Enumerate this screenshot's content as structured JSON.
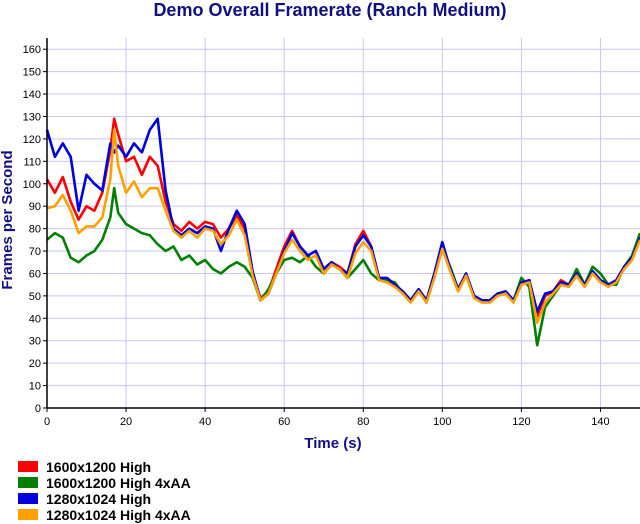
{
  "chart_data": {
    "type": "line",
    "title": "Demo Overall Framerate (Ranch Medium)",
    "xlabel": "Time (s)",
    "ylabel": "Frames per Second",
    "xlim": [
      0,
      150
    ],
    "ylim": [
      0,
      165
    ],
    "x_ticks": [
      "0",
      "20",
      "40",
      "60",
      "80",
      "100",
      "120",
      "140"
    ],
    "y_ticks": [
      "0",
      "10",
      "20",
      "30",
      "40",
      "50",
      "60",
      "70",
      "80",
      "90",
      "100",
      "110",
      "120",
      "130",
      "140",
      "150",
      "160"
    ],
    "grid": true,
    "legend_position": "bottom-left",
    "title_color": "#101080",
    "label_color": "#101080",
    "grid_color": "#c8c8f0",
    "series": [
      {
        "name": "1600x1200 High",
        "color": "#ff0000",
        "x": [
          0,
          2,
          4,
          6,
          8,
          10,
          12,
          14,
          16,
          17,
          18,
          20,
          22,
          24,
          26,
          28,
          30,
          32,
          34,
          36,
          38,
          40,
          42,
          44,
          46,
          48,
          50,
          52,
          54,
          56,
          58,
          60,
          62,
          64,
          66,
          68,
          70,
          72,
          74,
          76,
          78,
          80,
          82,
          84,
          86,
          88,
          90,
          92,
          94,
          96,
          98,
          100,
          102,
          104,
          106,
          108,
          110,
          112,
          114,
          116,
          118,
          120,
          122,
          124,
          126,
          128,
          130,
          132,
          134,
          136,
          138,
          140,
          142,
          144,
          146,
          148,
          150
        ],
        "values": [
          102,
          96,
          103,
          92,
          84,
          90,
          88,
          96,
          115,
          129,
          122,
          110,
          112,
          104,
          112,
          108,
          92,
          82,
          79,
          83,
          80,
          83,
          82,
          76,
          80,
          86,
          80,
          60,
          49,
          52,
          62,
          72,
          79,
          72,
          68,
          70,
          62,
          65,
          63,
          60,
          73,
          79,
          72,
          58,
          57,
          54,
          52,
          48,
          53,
          48,
          60,
          73,
          62,
          53,
          60,
          50,
          48,
          48,
          51,
          52,
          48,
          55,
          57,
          41,
          50,
          52,
          57,
          55,
          60,
          55,
          61,
          57,
          55,
          57,
          63,
          67,
          77
        ]
      },
      {
        "name": "1600x1200 High 4xAA",
        "color": "#008000",
        "x": [
          0,
          2,
          4,
          6,
          8,
          10,
          12,
          14,
          16,
          17,
          18,
          20,
          22,
          24,
          26,
          28,
          30,
          32,
          34,
          36,
          38,
          40,
          42,
          44,
          46,
          48,
          50,
          52,
          54,
          56,
          58,
          60,
          62,
          64,
          66,
          68,
          70,
          72,
          74,
          76,
          78,
          80,
          82,
          84,
          86,
          88,
          90,
          92,
          94,
          96,
          98,
          100,
          102,
          104,
          106,
          108,
          110,
          112,
          114,
          116,
          118,
          120,
          122,
          124,
          126,
          128,
          130,
          132,
          134,
          136,
          138,
          140,
          142,
          144,
          146,
          148,
          150
        ],
        "values": [
          75,
          78,
          76,
          67,
          65,
          68,
          70,
          75,
          85,
          98,
          87,
          82,
          80,
          78,
          77,
          73,
          70,
          72,
          66,
          68,
          64,
          66,
          62,
          60,
          63,
          65,
          63,
          58,
          48,
          53,
          60,
          66,
          67,
          65,
          68,
          63,
          60,
          64,
          62,
          58,
          62,
          66,
          60,
          57,
          57,
          56,
          51,
          48,
          53,
          47,
          59,
          71,
          63,
          53,
          59,
          50,
          48,
          48,
          51,
          51,
          48,
          58,
          54,
          28,
          45,
          50,
          55,
          55,
          62,
          55,
          63,
          60,
          55,
          55,
          63,
          68,
          78
        ]
      },
      {
        "name": "1280x1024 High",
        "color": "#0000dd",
        "x": [
          0,
          2,
          4,
          6,
          8,
          10,
          12,
          14,
          16,
          17,
          18,
          20,
          22,
          24,
          26,
          28,
          30,
          32,
          34,
          36,
          38,
          40,
          42,
          44,
          46,
          48,
          50,
          52,
          54,
          56,
          58,
          60,
          62,
          64,
          66,
          68,
          70,
          72,
          74,
          76,
          78,
          80,
          82,
          84,
          86,
          88,
          90,
          92,
          94,
          96,
          98,
          100,
          102,
          104,
          106,
          108,
          110,
          112,
          114,
          116,
          118,
          120,
          122,
          124,
          126,
          128,
          130,
          132,
          134,
          136,
          138,
          140,
          142,
          144,
          146,
          148,
          150
        ],
        "values": [
          124,
          112,
          118,
          112,
          88,
          104,
          100,
          97,
          118,
          114,
          117,
          112,
          118,
          114,
          124,
          129,
          97,
          80,
          77,
          80,
          78,
          81,
          80,
          70,
          80,
          88,
          82,
          61,
          48,
          51,
          60,
          70,
          78,
          72,
          68,
          70,
          62,
          65,
          62,
          60,
          72,
          77,
          72,
          58,
          58,
          55,
          52,
          48,
          53,
          48,
          60,
          74,
          62,
          53,
          60,
          50,
          48,
          48,
          51,
          52,
          48,
          56,
          57,
          43,
          51,
          52,
          56,
          55,
          60,
          55,
          61,
          57,
          55,
          57,
          63,
          67,
          76
        ]
      },
      {
        "name": "1280x1024 High 4xAA",
        "color": "#ffa000",
        "x": [
          0,
          2,
          4,
          6,
          8,
          10,
          12,
          14,
          16,
          17,
          18,
          20,
          22,
          24,
          26,
          28,
          30,
          32,
          34,
          36,
          38,
          40,
          42,
          44,
          46,
          48,
          50,
          52,
          54,
          56,
          58,
          60,
          62,
          64,
          66,
          68,
          70,
          72,
          74,
          76,
          78,
          80,
          82,
          84,
          86,
          88,
          90,
          92,
          94,
          96,
          98,
          100,
          102,
          104,
          106,
          108,
          110,
          112,
          114,
          116,
          118,
          120,
          122,
          124,
          126,
          128,
          130,
          132,
          134,
          136,
          138,
          140,
          142,
          144,
          146,
          148,
          150
        ],
        "values": [
          89,
          90,
          95,
          88,
          78,
          81,
          81,
          85,
          102,
          124,
          108,
          96,
          101,
          94,
          98,
          98,
          88,
          79,
          76,
          79,
          76,
          80,
          79,
          73,
          77,
          84,
          77,
          59,
          48,
          51,
          60,
          69,
          75,
          70,
          66,
          68,
          60,
          64,
          62,
          58,
          69,
          74,
          70,
          57,
          56,
          54,
          51,
          47,
          52,
          47,
          58,
          71,
          61,
          52,
          59,
          49,
          47,
          47,
          50,
          51,
          47,
          55,
          56,
          38,
          47,
          51,
          55,
          54,
          59,
          54,
          60,
          56,
          54,
          56,
          62,
          66,
          75
        ]
      }
    ]
  }
}
